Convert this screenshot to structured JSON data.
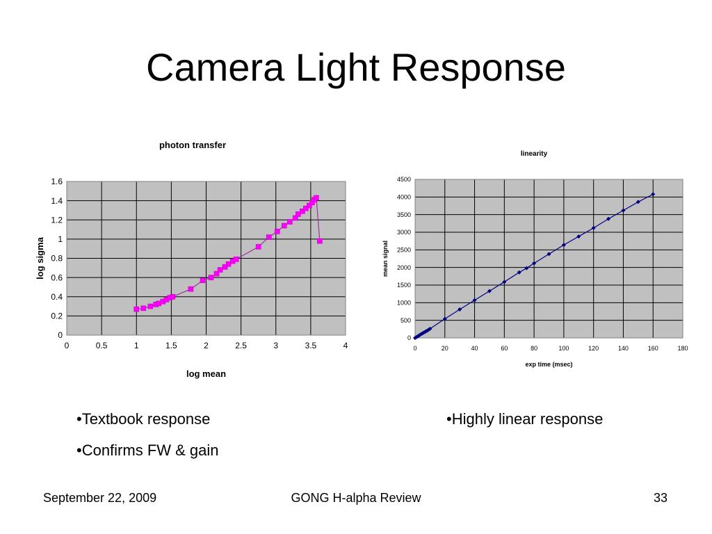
{
  "slide": {
    "title": "Camera Light Response",
    "bullets_left": [
      "•Textbook response",
      "•Confirms FW & gain"
    ],
    "bullets_right": [
      "•Highly linear response"
    ],
    "footer": {
      "date": "September 22, 2009",
      "center": "GONG H-alpha Review",
      "page": "33"
    }
  },
  "chart_data": [
    {
      "type": "line",
      "title": "photon transfer",
      "xlabel": "log mean",
      "ylabel": "log sigma",
      "xlim": [
        0,
        4
      ],
      "ylim": [
        0,
        1.6
      ],
      "xticks": [
        "0",
        "0.5",
        "1",
        "1.5",
        "2",
        "2.5",
        "3",
        "3.5",
        "4"
      ],
      "yticks": [
        "0",
        "0.2",
        "0.4",
        "0.6",
        "0.8",
        "1",
        "1.2",
        "1.4",
        "1.6"
      ],
      "grid": true,
      "legend": "none",
      "plot_bg": "#c0c0c0",
      "series_color": "#ff00ff",
      "line_color": "#993399",
      "x": [
        1.0,
        1.1,
        1.2,
        1.28,
        1.32,
        1.38,
        1.43,
        1.48,
        1.52,
        1.78,
        1.95,
        2.07,
        2.15,
        2.2,
        2.27,
        2.32,
        2.38,
        2.43,
        2.75,
        2.9,
        3.02,
        3.12,
        3.2,
        3.28,
        3.32,
        3.38,
        3.43,
        3.48,
        3.52,
        3.55,
        3.58,
        3.63
      ],
      "y": [
        0.27,
        0.28,
        0.3,
        0.32,
        0.33,
        0.35,
        0.37,
        0.39,
        0.4,
        0.48,
        0.57,
        0.6,
        0.64,
        0.68,
        0.71,
        0.74,
        0.77,
        0.79,
        0.92,
        1.02,
        1.08,
        1.14,
        1.18,
        1.22,
        1.26,
        1.29,
        1.32,
        1.35,
        1.38,
        1.41,
        1.43,
        0.98
      ]
    },
    {
      "type": "line",
      "title": "linearity",
      "xlabel": "exp time (msec)",
      "ylabel": "mean signal",
      "xlim": [
        0,
        180
      ],
      "ylim": [
        0,
        4500
      ],
      "xticks": [
        "0",
        "20",
        "40",
        "60",
        "80",
        "100",
        "120",
        "140",
        "160",
        "180"
      ],
      "yticks": [
        "0",
        "500",
        "1000",
        "1500",
        "2000",
        "2500",
        "3000",
        "3500",
        "4000",
        "4500"
      ],
      "grid": true,
      "legend": "none",
      "plot_bg": "#c0c0c0",
      "series_color": "#000080",
      "line_color": "#000080",
      "x": [
        0,
        1,
        2,
        3,
        4,
        5,
        6,
        7,
        8,
        9,
        10,
        20,
        30,
        40,
        50,
        60,
        70,
        75,
        80,
        90,
        100,
        110,
        120,
        130,
        140,
        150,
        160
      ],
      "y": [
        0,
        25,
        50,
        80,
        105,
        130,
        155,
        180,
        205,
        230,
        260,
        540,
        810,
        1070,
        1330,
        1590,
        1860,
        1980,
        2120,
        2380,
        2640,
        2880,
        3120,
        3380,
        3620,
        3860,
        4080
      ]
    }
  ]
}
